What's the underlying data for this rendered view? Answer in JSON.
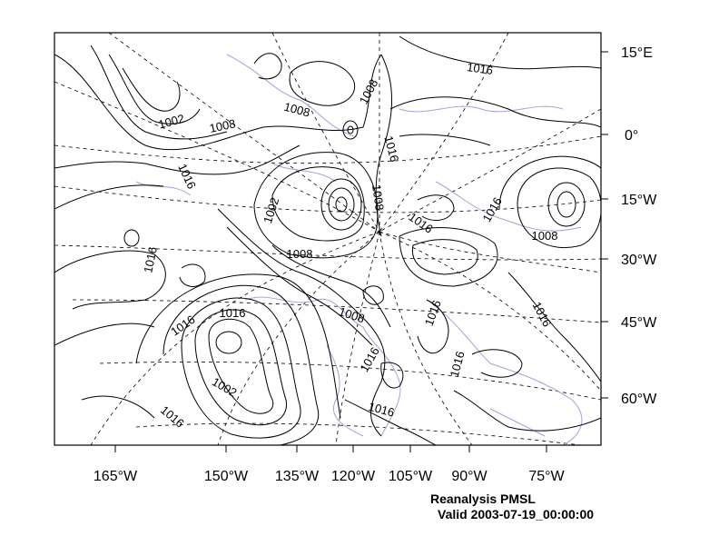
{
  "title": "Reanalysis PMSL",
  "valid": "Valid 2003-07-19_00:00:00",
  "right_axis_labels": [
    "15°E",
    "0°",
    "15°W",
    "30°W",
    "45°W",
    "60°W"
  ],
  "bottom_axis_labels": [
    "165°W",
    "150°W",
    "135°W",
    "120°W",
    "105°W",
    "90°W",
    "75°W"
  ],
  "contour_labels": [
    "1016",
    "1002",
    "1008",
    "1008",
    "1008",
    "1016",
    "1016",
    "1008",
    "1002",
    "1016",
    "1016",
    "1008",
    "1016",
    "1008",
    "1016",
    "1008",
    "1016",
    "1016",
    "1016",
    "1016",
    "1002",
    "1016",
    "1016",
    "1016"
  ],
  "colors": {
    "contour": "#000000",
    "coastline": "#b49ad6",
    "graticule": "#000000",
    "background": "#ffffff"
  }
}
